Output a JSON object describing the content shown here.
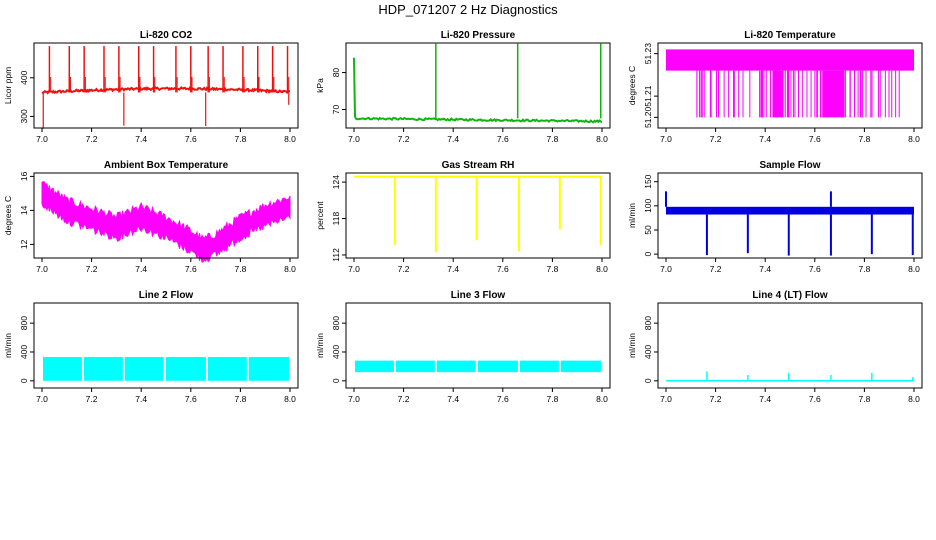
{
  "figure": {
    "title": "HDP_071207  2 Hz Diagnostics"
  },
  "chart_data": [
    {
      "type": "line",
      "title": "Li-820 CO2",
      "ylabel": "Licor ppm",
      "color": "#ee1111",
      "xlim": [
        7.0,
        8.0
      ],
      "ylim": [
        270,
        490
      ],
      "xticks": [
        "7.0",
        "7.2",
        "7.4",
        "7.6",
        "7.8",
        "8.0"
      ],
      "yticks": [
        {
          "v": 300,
          "label": "300"
        },
        {
          "v": 400,
          "label": "400"
        }
      ],
      "pattern": {
        "kind": "base_spikes",
        "base": 362,
        "noise": 3,
        "drift": 10,
        "spikes": [
          7.03,
          7.11,
          7.17,
          7.25,
          7.31,
          7.39,
          7.45,
          7.54,
          7.6,
          7.67,
          7.73,
          7.81,
          7.87,
          7.93,
          7.99
        ],
        "high": 482,
        "dips": [
          [
            7.005,
            268
          ],
          [
            7.33,
            276
          ],
          [
            7.66,
            275
          ],
          [
            7.995,
            330
          ]
        ]
      }
    },
    {
      "type": "line",
      "title": "Li-820 Pressure",
      "ylabel": "kPa",
      "color": "#10b410",
      "xlim": [
        7.0,
        8.0
      ],
      "ylim": [
        65,
        88
      ],
      "xticks": [
        "7.0",
        "7.2",
        "7.4",
        "7.6",
        "7.8",
        "8.0"
      ],
      "yticks": [
        {
          "v": 70,
          "label": "70"
        },
        {
          "v": 80,
          "label": "80"
        }
      ],
      "pattern": {
        "kind": "decay_spikes",
        "start": 84,
        "base": 67.6,
        "end": 66.8,
        "noise": 0.25,
        "spikes": [
          7.33,
          7.66,
          7.995
        ],
        "high": 87.8
      }
    },
    {
      "type": "band",
      "title": "Li-820 Temperature",
      "ylabel": "degrees C",
      "color": "#ff00ff",
      "xlim": [
        7.0,
        8.0
      ],
      "ylim": [
        51.195,
        51.235
      ],
      "xticks": [
        "7.0",
        "7.2",
        "7.4",
        "7.6",
        "7.8",
        "8.0"
      ],
      "yticks": [
        {
          "v": 51.2,
          "label": "51.20"
        },
        {
          "v": 51.21,
          "label": "51.21"
        },
        {
          "v": 51.23,
          "label": "51.23"
        }
      ],
      "pattern": {
        "kind": "band_drops",
        "top": 51.232,
        "bottom": 51.222,
        "low": 51.2,
        "drops": 70
      }
    },
    {
      "type": "band",
      "title": "Ambient Box Temperature",
      "ylabel": "degrees C",
      "color": "#ff00ff",
      "xlim": [
        7.0,
        8.0
      ],
      "ylim": [
        11.2,
        16.2
      ],
      "xticks": [
        "7.0",
        "7.2",
        "7.4",
        "7.6",
        "7.8",
        "8.0"
      ],
      "yticks": [
        {
          "v": 12,
          "label": "12"
        },
        {
          "v": 14,
          "label": "14"
        },
        {
          "v": 16,
          "label": "16"
        }
      ],
      "pattern": {
        "kind": "wavy_band",
        "curve": [
          [
            7.0,
            15.0
          ],
          [
            7.1,
            14.0
          ],
          [
            7.2,
            13.5
          ],
          [
            7.3,
            13.0
          ],
          [
            7.4,
            13.6
          ],
          [
            7.5,
            13.0
          ],
          [
            7.6,
            12.2
          ],
          [
            7.65,
            11.7
          ],
          [
            7.7,
            12.0
          ],
          [
            7.8,
            13.0
          ],
          [
            7.9,
            13.7
          ],
          [
            8.0,
            14.2
          ]
        ],
        "half": 0.6
      }
    },
    {
      "type": "line",
      "title": "Gas Stream RH",
      "ylabel": "percent",
      "color": "#ffff00",
      "xlim": [
        7.0,
        8.0
      ],
      "ylim": [
        111.5,
        125.5
      ],
      "xticks": [
        "7.0",
        "7.2",
        "7.4",
        "7.6",
        "7.8",
        "8.0"
      ],
      "yticks": [
        {
          "v": 112,
          "label": "112"
        },
        {
          "v": 118,
          "label": "118"
        },
        {
          "v": 124,
          "label": "124"
        }
      ],
      "pattern": {
        "kind": "top_dips",
        "base": 124.9,
        "noise": 0.05,
        "dips": [
          [
            7.165,
            113.6
          ],
          [
            7.33,
            112.4
          ],
          [
            7.495,
            114.4
          ],
          [
            7.665,
            112.6
          ],
          [
            7.83,
            116.2
          ],
          [
            7.995,
            113.6
          ]
        ]
      }
    },
    {
      "type": "band",
      "title": "Sample Flow",
      "ylabel": "ml/min",
      "color": "#0000e0",
      "xlim": [
        7.0,
        8.0
      ],
      "ylim": [
        -8,
        168
      ],
      "xticks": [
        "7.0",
        "7.2",
        "7.4",
        "7.6",
        "7.8",
        "8.0"
      ],
      "yticks": [
        {
          "v": 0,
          "label": "0"
        },
        {
          "v": 50,
          "label": "50"
        },
        {
          "v": 100,
          "label": "100"
        },
        {
          "v": 150,
          "label": "150"
        }
      ],
      "pattern": {
        "kind": "flow_band",
        "top": 98,
        "bottom": 82,
        "dips": [
          [
            7.165,
            -2
          ],
          [
            7.33,
            2
          ],
          [
            7.495,
            -3
          ],
          [
            7.665,
            -3
          ],
          [
            7.83,
            0
          ],
          [
            7.995,
            -2
          ]
        ],
        "peaks": [
          [
            7.0,
            130
          ],
          [
            7.665,
            130
          ]
        ]
      }
    },
    {
      "type": "band",
      "title": "Line 2 Flow",
      "ylabel": "ml/min",
      "color": "#00ffff",
      "xlim": [
        7.0,
        8.0
      ],
      "ylim": [
        -100,
        1080
      ],
      "xticks": [
        "7.0",
        "7.2",
        "7.4",
        "7.6",
        "7.8",
        "8.0"
      ],
      "yticks": [
        {
          "v": 0,
          "label": "0"
        },
        {
          "v": 400,
          "label": "400"
        },
        {
          "v": 800,
          "label": "800"
        }
      ],
      "pattern": {
        "kind": "segments",
        "top": 330,
        "bottom": 0,
        "gaps": [
          7.165,
          7.33,
          7.495,
          7.665,
          7.83
        ]
      }
    },
    {
      "type": "band",
      "title": "Line 3 Flow",
      "ylabel": "ml/min",
      "color": "#00ffff",
      "xlim": [
        7.0,
        8.0
      ],
      "ylim": [
        -100,
        1080
      ],
      "xticks": [
        "7.0",
        "7.2",
        "7.4",
        "7.6",
        "7.8",
        "8.0"
      ],
      "yticks": [
        {
          "v": 0,
          "label": "0"
        },
        {
          "v": 400,
          "label": "400"
        },
        {
          "v": 800,
          "label": "800"
        }
      ],
      "pattern": {
        "kind": "segments",
        "top": 280,
        "bottom": 120,
        "gaps": [
          7.165,
          7.33,
          7.495,
          7.665,
          7.83
        ]
      }
    },
    {
      "type": "line",
      "title": "Line 4 (LT) Flow",
      "ylabel": "ml/min",
      "color": "#00ffff",
      "xlim": [
        7.0,
        8.0
      ],
      "ylim": [
        -100,
        1080
      ],
      "xticks": [
        "7.0",
        "7.2",
        "7.4",
        "7.6",
        "7.8",
        "8.0"
      ],
      "yticks": [
        {
          "v": 0,
          "label": "0"
        },
        {
          "v": 400,
          "label": "400"
        },
        {
          "v": 800,
          "label": "800"
        }
      ],
      "pattern": {
        "kind": "flat_spikes",
        "base": 0,
        "spikes": [
          [
            7.165,
            130
          ],
          [
            7.33,
            80
          ],
          [
            7.495,
            110
          ],
          [
            7.665,
            80
          ],
          [
            7.83,
            110
          ],
          [
            7.995,
            50
          ]
        ]
      }
    }
  ]
}
